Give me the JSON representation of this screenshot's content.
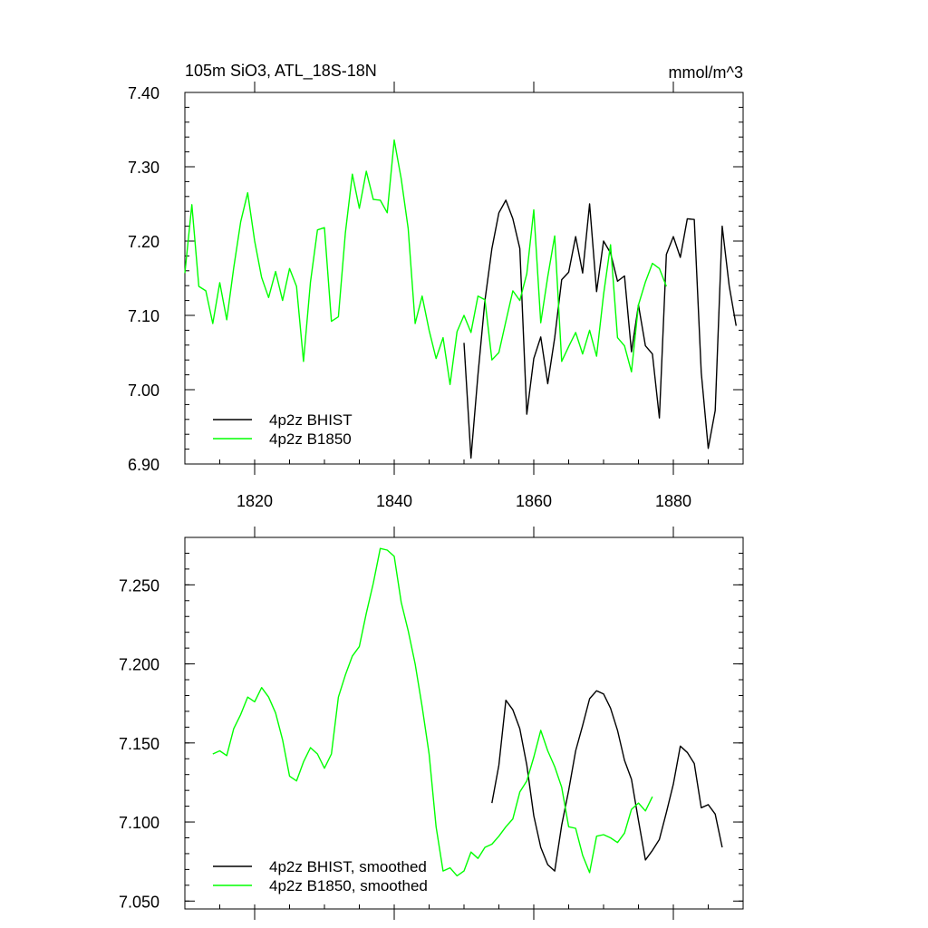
{
  "colors": {
    "bhist": "#000000",
    "b1850": "#00ff00"
  },
  "chart_data": [
    {
      "type": "line",
      "title": "105m SiO3, ATL_18S-18N",
      "units_label": "mmol/m^3",
      "xlim": [
        1810,
        1890
      ],
      "ylim": [
        6.9,
        7.4
      ],
      "x_ticks": [
        1820,
        1840,
        1860,
        1880
      ],
      "y_ticks": [
        6.9,
        7.0,
        7.1,
        7.2,
        7.3,
        7.4
      ],
      "y_tick_labels": [
        "6.90",
        "7.00",
        "7.10",
        "7.20",
        "7.30",
        "7.40"
      ],
      "legend_position": "bottom-left",
      "series": [
        {
          "name": "4p2z BHIST",
          "color": "#000000",
          "x_start": 1850,
          "values": [
            7.063,
            6.908,
            7.02,
            7.12,
            7.19,
            7.238,
            7.255,
            7.23,
            7.19,
            6.967,
            7.042,
            7.071,
            7.008,
            7.07,
            7.148,
            7.158,
            7.206,
            7.157,
            7.25,
            7.132,
            7.2,
            7.184,
            7.146,
            7.153,
            7.051,
            7.114,
            7.059,
            7.048,
            6.962,
            7.182,
            7.206,
            7.178,
            7.23,
            7.229,
            7.023,
            6.921,
            6.972,
            7.22,
            7.14,
            7.086
          ]
        },
        {
          "name": "4p2z B1850",
          "color": "#00ff00",
          "x_start": 1810,
          "values": [
            7.157,
            7.249,
            7.139,
            7.133,
            7.089,
            7.144,
            7.094,
            7.164,
            7.226,
            7.265,
            7.2,
            7.151,
            7.124,
            7.159,
            7.12,
            7.163,
            7.139,
            7.038,
            7.145,
            7.215,
            7.218,
            7.092,
            7.098,
            7.211,
            7.29,
            7.244,
            7.294,
            7.256,
            7.255,
            7.238,
            7.336,
            7.284,
            7.217,
            7.089,
            7.126,
            7.08,
            7.042,
            7.07,
            7.007,
            7.078,
            7.1,
            7.077,
            7.126,
            7.121,
            7.04,
            7.05,
            7.092,
            7.133,
            7.12,
            7.156,
            7.242,
            7.09,
            7.152,
            7.207,
            7.038,
            7.058,
            7.077,
            7.048,
            7.08,
            7.045,
            7.128,
            7.195,
            7.07,
            7.059,
            7.024,
            7.114,
            7.145,
            7.17,
            7.163,
            7.139
          ]
        }
      ]
    },
    {
      "type": "line",
      "title": "",
      "xlim": [
        1810,
        1890
      ],
      "ylim": [
        7.045,
        7.28
      ],
      "x_ticks": [
        1820,
        1840,
        1860,
        1880
      ],
      "y_ticks": [
        7.05,
        7.1,
        7.15,
        7.2,
        7.25
      ],
      "y_tick_labels": [
        "7.050",
        "7.100",
        "7.150",
        "7.200",
        "7.250"
      ],
      "legend_position": "bottom-left",
      "series": [
        {
          "name": "4p2z BHIST, smoothed",
          "color": "#000000",
          "x_start": 1854,
          "values": [
            7.112,
            7.136,
            7.177,
            7.171,
            7.159,
            7.136,
            7.104,
            7.084,
            7.073,
            7.069,
            7.098,
            7.12,
            7.145,
            7.161,
            7.178,
            7.183,
            7.181,
            7.172,
            7.158,
            7.139,
            7.127,
            7.101,
            7.076,
            7.082,
            7.089,
            7.106,
            7.124,
            7.148,
            7.144,
            7.137,
            7.109,
            7.111,
            7.105,
            7.084
          ]
        },
        {
          "name": "4p2z B1850, smoothed",
          "color": "#00ff00",
          "x_start": 1814,
          "values": [
            7.143,
            7.145,
            7.142,
            7.159,
            7.168,
            7.179,
            7.176,
            7.185,
            7.179,
            7.169,
            7.152,
            7.129,
            7.126,
            7.138,
            7.147,
            7.143,
            7.134,
            7.143,
            7.179,
            7.193,
            7.205,
            7.211,
            7.232,
            7.251,
            7.273,
            7.272,
            7.268,
            7.239,
            7.221,
            7.2,
            7.173,
            7.143,
            7.097,
            7.069,
            7.071,
            7.066,
            7.069,
            7.081,
            7.077,
            7.084,
            7.086,
            7.091,
            7.097,
            7.102,
            7.119,
            7.126,
            7.141,
            7.158,
            7.145,
            7.135,
            7.122,
            7.097,
            7.096,
            7.079,
            7.068,
            7.091,
            7.092,
            7.09,
            7.087,
            7.093,
            7.108,
            7.112,
            7.107,
            7.116
          ]
        }
      ]
    }
  ]
}
